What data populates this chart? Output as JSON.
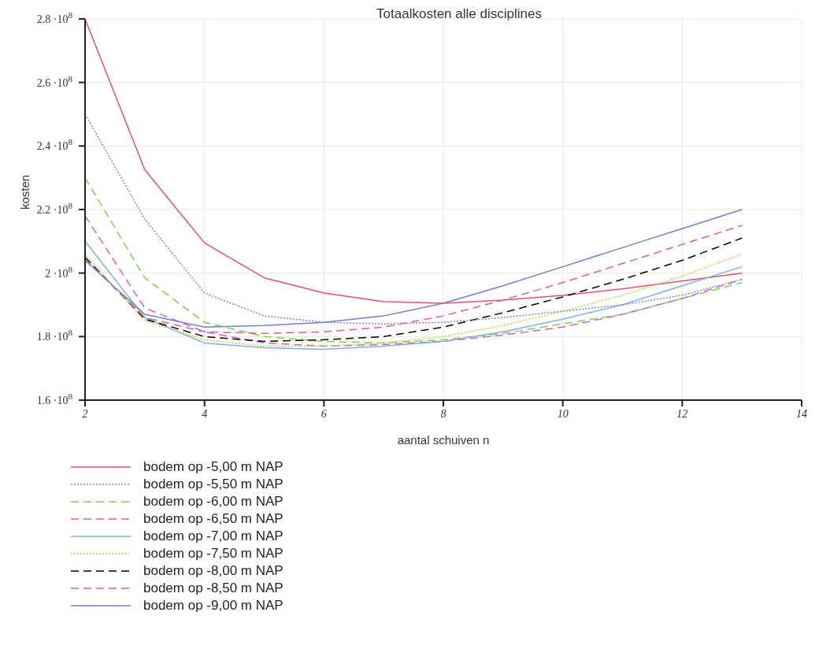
{
  "chart_data": {
    "type": "line",
    "title": "Totaalkosten alle disciplines",
    "xlabel": "aantal schuiven n",
    "ylabel": "kosten",
    "x": [
      2,
      3,
      4,
      5,
      6,
      7,
      8,
      9,
      10,
      11,
      12,
      13
    ],
    "xlim": [
      2,
      14
    ],
    "xticks": [
      2,
      4,
      6,
      8,
      10,
      12,
      14
    ],
    "ylim": [
      160000000,
      280000000
    ],
    "yticks": [
      {
        "value": 160000000,
        "label": "1.6 ·10$^{8}$"
      },
      {
        "value": 180000000,
        "label": "1.8 ·10$^{8}$"
      },
      {
        "value": 200000000,
        "label": "2 ·10$^{8}$"
      },
      {
        "value": 220000000,
        "label": "2.2 ·10$^{8}$"
      },
      {
        "value": 240000000,
        "label": "2.4 ·10$^{8}$"
      },
      {
        "value": 260000000,
        "label": "2.6 ·10$^{8}$"
      },
      {
        "value": 280000000,
        "label": "2.8 ·10$^{8}$"
      }
    ],
    "grid": true,
    "legend": "bottom",
    "marker": "none",
    "series": [
      {
        "name": "bodem op -5,00 m NAP",
        "color": "#e05070",
        "line_style": "solid",
        "values": [
          280000000,
          232500000,
          209500000,
          198500000,
          193700000,
          191000000,
          190500000,
          191500000,
          193000000,
          195000000,
          197500000,
          200000000
        ]
      },
      {
        "name": "bodem op -5,50 m NAP",
        "color": "#8080d0",
        "line_style": "dotted",
        "values": [
          250000000,
          217000000,
          193700000,
          186500000,
          184500000,
          184000000,
          184500000,
          186000000,
          188000000,
          190000000,
          193000000,
          198000000
        ]
      },
      {
        "name": "bodem op -6,00 m NAP",
        "color": "#80d040",
        "line_style": "dashed",
        "values": [
          230000000,
          198500000,
          184500000,
          180000000,
          178500000,
          178000000,
          179000000,
          181000000,
          184000000,
          187000000,
          192000000,
          197000000
        ]
      },
      {
        "name": "bodem op -6,50 m NAP",
        "color": "#d060d0",
        "line_style": "dashed",
        "values": [
          218000000,
          189000000,
          181500000,
          178000000,
          177000000,
          177500000,
          178500000,
          180500000,
          183000000,
          187000000,
          192000000,
          198000000
        ]
      },
      {
        "name": "bodem op -7,00 m NAP",
        "color": "#80b0e0",
        "line_style": "solid",
        "values": [
          210000000,
          186000000,
          178000000,
          176500000,
          176000000,
          177000000,
          178500000,
          181500000,
          185500000,
          190000000,
          196000000,
          202000000
        ]
      },
      {
        "name": "bodem op -7,50 m NAP",
        "color": "#c0d040",
        "line_style": "dotted",
        "values": [
          206000000,
          185000000,
          179000000,
          177000000,
          177000000,
          178000000,
          180000000,
          183500000,
          188000000,
          193000000,
          199000000,
          206000000
        ]
      },
      {
        "name": "bodem op -8,00 m NAP",
        "color": "#000000",
        "line_style": "dashed",
        "values": [
          205000000,
          185500000,
          180000000,
          178500000,
          179000000,
          180000000,
          183000000,
          187500000,
          192500000,
          198000000,
          204000000,
          211000000
        ]
      },
      {
        "name": "bodem op -8,50 m NAP",
        "color": "#e06080",
        "line_style": "dashed",
        "values": [
          204500000,
          186000000,
          181500000,
          181000000,
          181500000,
          183000000,
          186500000,
          191500000,
          197000000,
          203000000,
          209000000,
          215000000
        ]
      },
      {
        "name": "bodem op -9,00 m NAP",
        "color": "#7080d0",
        "line_style": "solid",
        "values": [
          204000000,
          187000000,
          183000000,
          183500000,
          184500000,
          186500000,
          190500000,
          196000000,
          202000000,
          208000000,
          214000000,
          220000000
        ]
      }
    ]
  }
}
